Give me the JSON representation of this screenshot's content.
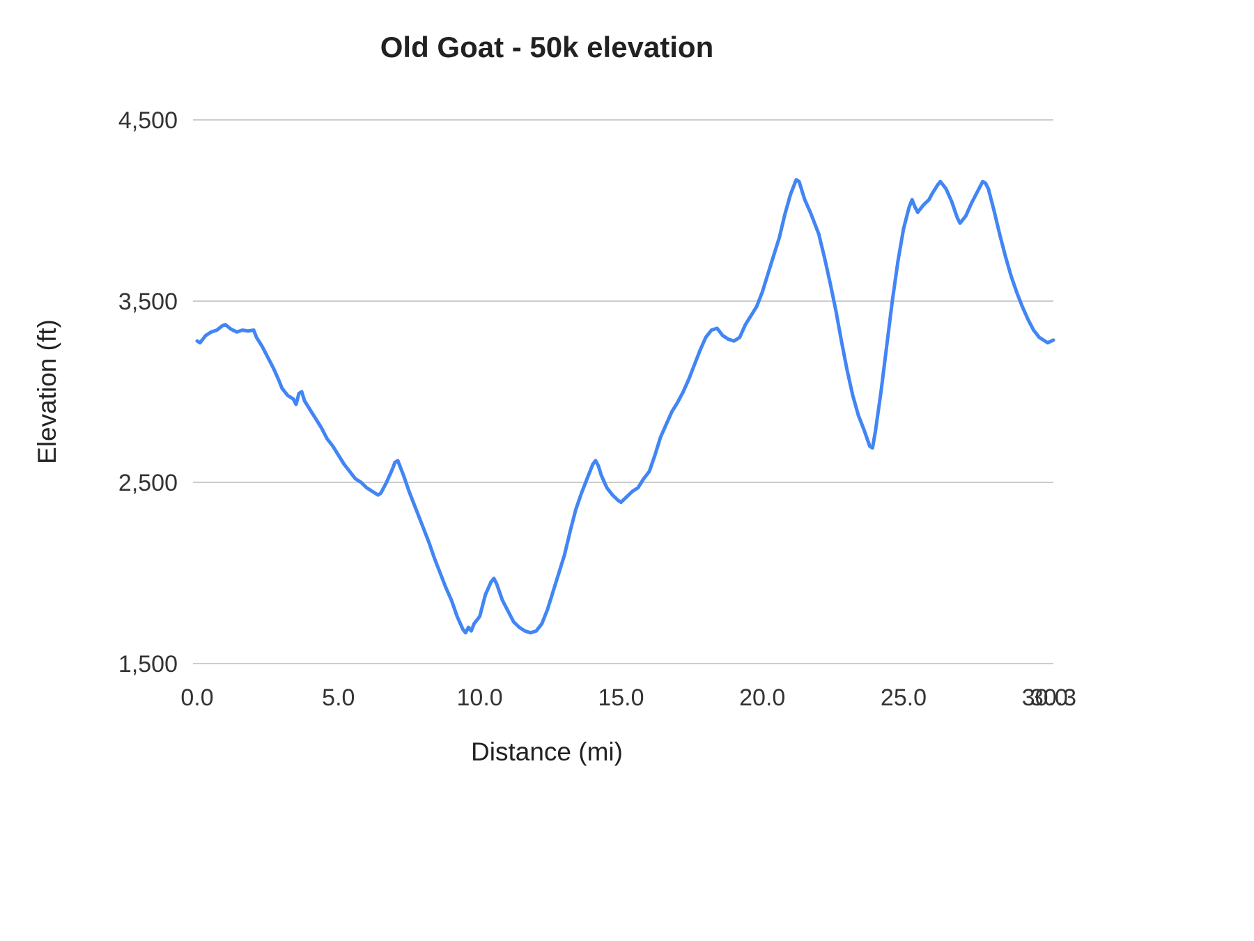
{
  "chart_data": {
    "type": "line",
    "title": "Old Goat - 50k elevation",
    "xlabel": "Distance (mi)",
    "ylabel": "Elevation (ft)",
    "xlim": [
      0,
      30.3
    ],
    "ylim": [
      1500,
      4500
    ],
    "grid": "horizontal-only",
    "legend": "none",
    "line_color": "#4285f4",
    "grid_color": "#cccccc",
    "y_ticks": [
      {
        "value": 1500,
        "label": "1,500"
      },
      {
        "value": 2500,
        "label": "2,500"
      },
      {
        "value": 3500,
        "label": "3,500"
      },
      {
        "value": 4500,
        "label": "4,500"
      }
    ],
    "x_ticks": [
      {
        "value": 0.0,
        "label": "0.0"
      },
      {
        "value": 5.0,
        "label": "5.0"
      },
      {
        "value": 10.0,
        "label": "10.0"
      },
      {
        "value": 15.0,
        "label": "15.0"
      },
      {
        "value": 20.0,
        "label": "20.0"
      },
      {
        "value": 25.0,
        "label": "25.0"
      },
      {
        "value": 30.0,
        "label": "30.0"
      },
      {
        "value": 30.3,
        "label": "30.3"
      }
    ],
    "series": [
      {
        "name": "elevation",
        "points": [
          [
            0.0,
            3280
          ],
          [
            0.1,
            3270
          ],
          [
            0.3,
            3310
          ],
          [
            0.5,
            3330
          ],
          [
            0.7,
            3340
          ],
          [
            0.9,
            3365
          ],
          [
            1.0,
            3370
          ],
          [
            1.2,
            3345
          ],
          [
            1.4,
            3330
          ],
          [
            1.6,
            3340
          ],
          [
            1.8,
            3335
          ],
          [
            2.0,
            3340
          ],
          [
            2.1,
            3300
          ],
          [
            2.3,
            3250
          ],
          [
            2.5,
            3190
          ],
          [
            2.7,
            3130
          ],
          [
            2.9,
            3060
          ],
          [
            3.0,
            3020
          ],
          [
            3.2,
            2980
          ],
          [
            3.4,
            2960
          ],
          [
            3.5,
            2930
          ],
          [
            3.6,
            2990
          ],
          [
            3.7,
            3000
          ],
          [
            3.8,
            2950
          ],
          [
            4.0,
            2900
          ],
          [
            4.2,
            2850
          ],
          [
            4.4,
            2800
          ],
          [
            4.6,
            2740
          ],
          [
            4.8,
            2700
          ],
          [
            5.0,
            2650
          ],
          [
            5.2,
            2600
          ],
          [
            5.4,
            2560
          ],
          [
            5.6,
            2520
          ],
          [
            5.8,
            2500
          ],
          [
            6.0,
            2470
          ],
          [
            6.2,
            2450
          ],
          [
            6.4,
            2430
          ],
          [
            6.5,
            2440
          ],
          [
            6.7,
            2500
          ],
          [
            6.9,
            2570
          ],
          [
            7.0,
            2610
          ],
          [
            7.1,
            2620
          ],
          [
            7.3,
            2540
          ],
          [
            7.5,
            2450
          ],
          [
            7.7,
            2370
          ],
          [
            8.0,
            2250
          ],
          [
            8.2,
            2170
          ],
          [
            8.4,
            2080
          ],
          [
            8.6,
            2000
          ],
          [
            8.8,
            1920
          ],
          [
            9.0,
            1850
          ],
          [
            9.2,
            1760
          ],
          [
            9.4,
            1690
          ],
          [
            9.5,
            1670
          ],
          [
            9.6,
            1700
          ],
          [
            9.7,
            1680
          ],
          [
            9.8,
            1720
          ],
          [
            10.0,
            1760
          ],
          [
            10.2,
            1880
          ],
          [
            10.4,
            1950
          ],
          [
            10.5,
            1970
          ],
          [
            10.6,
            1940
          ],
          [
            10.8,
            1850
          ],
          [
            11.0,
            1790
          ],
          [
            11.2,
            1730
          ],
          [
            11.4,
            1700
          ],
          [
            11.6,
            1680
          ],
          [
            11.8,
            1670
          ],
          [
            12.0,
            1680
          ],
          [
            12.2,
            1720
          ],
          [
            12.4,
            1800
          ],
          [
            12.6,
            1900
          ],
          [
            12.8,
            2000
          ],
          [
            13.0,
            2100
          ],
          [
            13.2,
            2230
          ],
          [
            13.4,
            2350
          ],
          [
            13.6,
            2440
          ],
          [
            13.8,
            2520
          ],
          [
            14.0,
            2600
          ],
          [
            14.1,
            2620
          ],
          [
            14.2,
            2590
          ],
          [
            14.3,
            2540
          ],
          [
            14.5,
            2470
          ],
          [
            14.7,
            2430
          ],
          [
            14.9,
            2400
          ],
          [
            15.0,
            2390
          ],
          [
            15.2,
            2420
          ],
          [
            15.4,
            2450
          ],
          [
            15.6,
            2470
          ],
          [
            15.8,
            2520
          ],
          [
            16.0,
            2560
          ],
          [
            16.2,
            2650
          ],
          [
            16.4,
            2750
          ],
          [
            16.6,
            2820
          ],
          [
            16.8,
            2890
          ],
          [
            17.0,
            2940
          ],
          [
            17.2,
            3000
          ],
          [
            17.4,
            3070
          ],
          [
            17.6,
            3150
          ],
          [
            17.8,
            3230
          ],
          [
            18.0,
            3300
          ],
          [
            18.2,
            3340
          ],
          [
            18.4,
            3350
          ],
          [
            18.6,
            3310
          ],
          [
            18.8,
            3290
          ],
          [
            19.0,
            3280
          ],
          [
            19.2,
            3300
          ],
          [
            19.4,
            3370
          ],
          [
            19.6,
            3420
          ],
          [
            19.8,
            3470
          ],
          [
            20.0,
            3550
          ],
          [
            20.2,
            3650
          ],
          [
            20.4,
            3750
          ],
          [
            20.6,
            3850
          ],
          [
            20.8,
            3980
          ],
          [
            21.0,
            4090
          ],
          [
            21.2,
            4170
          ],
          [
            21.3,
            4160
          ],
          [
            21.5,
            4060
          ],
          [
            21.7,
            3990
          ],
          [
            22.0,
            3870
          ],
          [
            22.2,
            3740
          ],
          [
            22.4,
            3600
          ],
          [
            22.6,
            3450
          ],
          [
            22.8,
            3280
          ],
          [
            23.0,
            3120
          ],
          [
            23.2,
            2980
          ],
          [
            23.4,
            2870
          ],
          [
            23.6,
            2790
          ],
          [
            23.8,
            2700
          ],
          [
            23.9,
            2690
          ],
          [
            24.0,
            2780
          ],
          [
            24.2,
            3000
          ],
          [
            24.4,
            3250
          ],
          [
            24.6,
            3500
          ],
          [
            24.8,
            3720
          ],
          [
            25.0,
            3900
          ],
          [
            25.2,
            4020
          ],
          [
            25.3,
            4060
          ],
          [
            25.4,
            4020
          ],
          [
            25.5,
            3990
          ],
          [
            25.7,
            4030
          ],
          [
            25.9,
            4060
          ],
          [
            26.0,
            4090
          ],
          [
            26.2,
            4140
          ],
          [
            26.3,
            4160
          ],
          [
            26.5,
            4120
          ],
          [
            26.7,
            4050
          ],
          [
            26.9,
            3960
          ],
          [
            27.0,
            3930
          ],
          [
            27.2,
            3970
          ],
          [
            27.4,
            4040
          ],
          [
            27.6,
            4100
          ],
          [
            27.8,
            4160
          ],
          [
            27.9,
            4150
          ],
          [
            28.0,
            4120
          ],
          [
            28.2,
            4000
          ],
          [
            28.4,
            3870
          ],
          [
            28.6,
            3750
          ],
          [
            28.8,
            3640
          ],
          [
            29.0,
            3550
          ],
          [
            29.2,
            3470
          ],
          [
            29.4,
            3400
          ],
          [
            29.6,
            3340
          ],
          [
            29.8,
            3300
          ],
          [
            30.0,
            3280
          ],
          [
            30.1,
            3270
          ],
          [
            30.3,
            3285
          ]
        ]
      }
    ]
  }
}
